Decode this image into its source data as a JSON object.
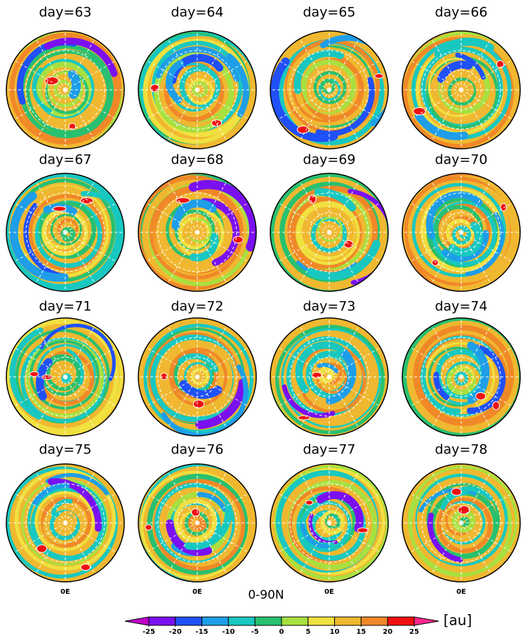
{
  "panels": [
    {
      "title": "day=63"
    },
    {
      "title": "day=64"
    },
    {
      "title": "day=65"
    },
    {
      "title": "day=66"
    },
    {
      "title": "day=67"
    },
    {
      "title": "day=68"
    },
    {
      "title": "day=69"
    },
    {
      "title": "day=70"
    },
    {
      "title": "day=71"
    },
    {
      "title": "day=72"
    },
    {
      "title": "day=73"
    },
    {
      "title": "day=74"
    },
    {
      "title": "day=75"
    },
    {
      "title": "day=76"
    },
    {
      "title": "day=77"
    },
    {
      "title": "day=78"
    }
  ],
  "longitude_labels": [
    "0E",
    "0E",
    "0E",
    "0E"
  ],
  "caption": "0-90N",
  "colorbar": {
    "ticks": [
      -25,
      -20,
      -15,
      -10,
      -5,
      0,
      5,
      10,
      15,
      20,
      25
    ],
    "colors": [
      "#c000c8",
      "#7a10f0",
      "#2050f8",
      "#1e9ee8",
      "#18c8c0",
      "#28c070",
      "#a8e040",
      "#f0e040",
      "#f0b830",
      "#f08828",
      "#f01010",
      "#ff2890"
    ],
    "unit": "[au]"
  }
}
